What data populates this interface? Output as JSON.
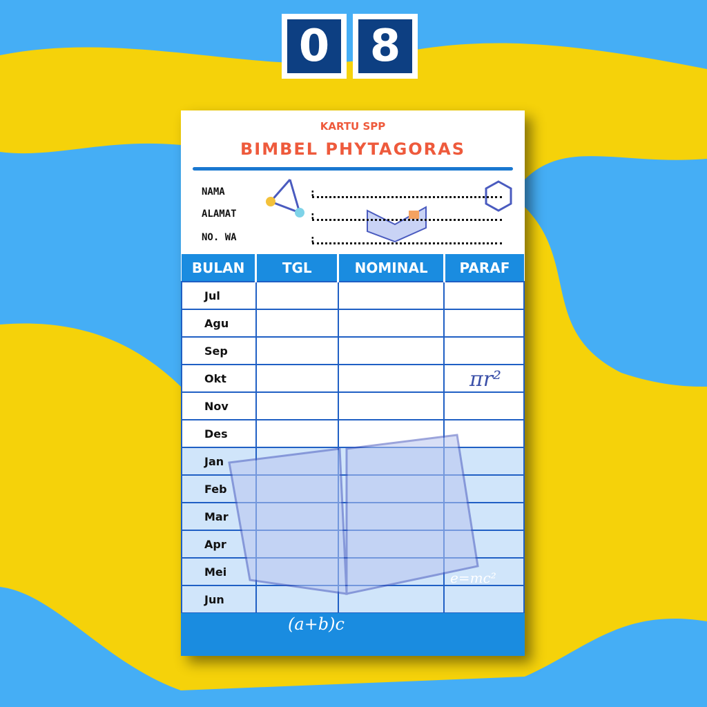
{
  "badge": {
    "digits": [
      "0",
      "8"
    ]
  },
  "card": {
    "subtitle": "KARTU SPP",
    "title": "BIMBEL PHYTAGORAS",
    "fields": [
      {
        "label": "NAMA"
      },
      {
        "label": "ALAMAT"
      },
      {
        "label": "NO. WA"
      }
    ],
    "columns": [
      "BULAN",
      "TGL",
      "NOMINAL",
      "PARAF"
    ],
    "months": [
      "Jul",
      "Agu",
      "Sep",
      "Okt",
      "Nov",
      "Des",
      "Jan",
      "Feb",
      "Mar",
      "Apr",
      "Mei",
      "Jun"
    ],
    "decor_text": {
      "pi": "πr²",
      "emc": "e=mc²",
      "formula": "(a+b)c"
    }
  },
  "colors": {
    "background": "#45aef5",
    "wave": "#f5d20a",
    "accent": "#1a8ce0",
    "title": "#ee5a3c"
  }
}
